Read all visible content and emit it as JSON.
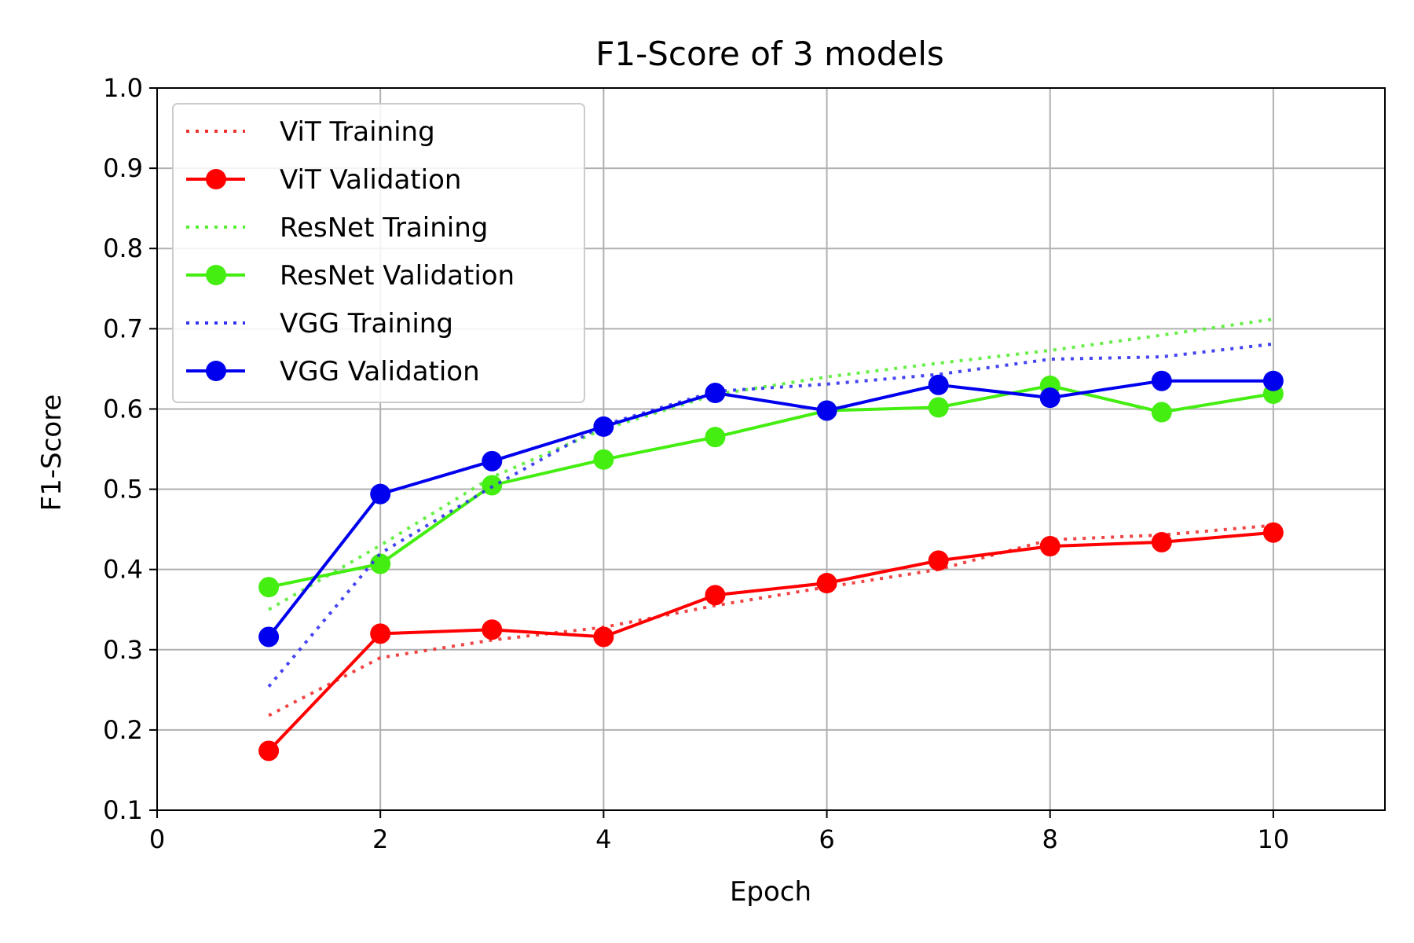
{
  "chart_data": {
    "type": "line",
    "title": "F1-Score of 3 models",
    "xlabel": "Epoch",
    "ylabel": "F1-Score",
    "xlim": [
      0,
      11
    ],
    "ylim": [
      0.1,
      1.0
    ],
    "xticks": [
      "0",
      "2",
      "4",
      "6",
      "8",
      "10"
    ],
    "yticks": [
      "0.1",
      "0.2",
      "0.3",
      "0.4",
      "0.5",
      "0.6",
      "0.7",
      "0.8",
      "0.9",
      "1.0"
    ],
    "grid": true,
    "legend_position": "top-left",
    "x": [
      1,
      2,
      3,
      4,
      5,
      6,
      7,
      8,
      9,
      10
    ],
    "series": [
      {
        "name": "ViT Training",
        "style": "dotted",
        "color": "#f03030",
        "values": [
          0.218,
          0.29,
          0.312,
          0.328,
          0.355,
          0.378,
          0.4,
          0.437,
          0.443,
          0.455
        ]
      },
      {
        "name": "ViT Validation",
        "style": "solid-marker",
        "color": "#ff0000",
        "values": [
          0.174,
          0.32,
          0.325,
          0.316,
          0.368,
          0.383,
          0.411,
          0.429,
          0.434,
          0.446
        ]
      },
      {
        "name": "ResNet Training",
        "style": "dotted",
        "color": "#55ee33",
        "values": [
          0.35,
          0.43,
          0.515,
          0.575,
          0.618,
          0.64,
          0.657,
          0.673,
          0.692,
          0.712
        ]
      },
      {
        "name": "ResNet Validation",
        "style": "solid-marker",
        "color": "#44ee11",
        "values": [
          0.378,
          0.407,
          0.505,
          0.537,
          0.565,
          0.598,
          0.602,
          0.629,
          0.596,
          0.619
        ]
      },
      {
        "name": "VGG Training",
        "style": "dotted",
        "color": "#3030f0",
        "values": [
          0.254,
          0.42,
          0.503,
          0.58,
          0.622,
          0.631,
          0.643,
          0.662,
          0.665,
          0.681
        ]
      },
      {
        "name": "VGG Validation",
        "style": "solid-marker",
        "color": "#0000ee",
        "values": [
          0.316,
          0.494,
          0.535,
          0.578,
          0.62,
          0.598,
          0.63,
          0.614,
          0.635,
          0.635
        ]
      }
    ]
  }
}
